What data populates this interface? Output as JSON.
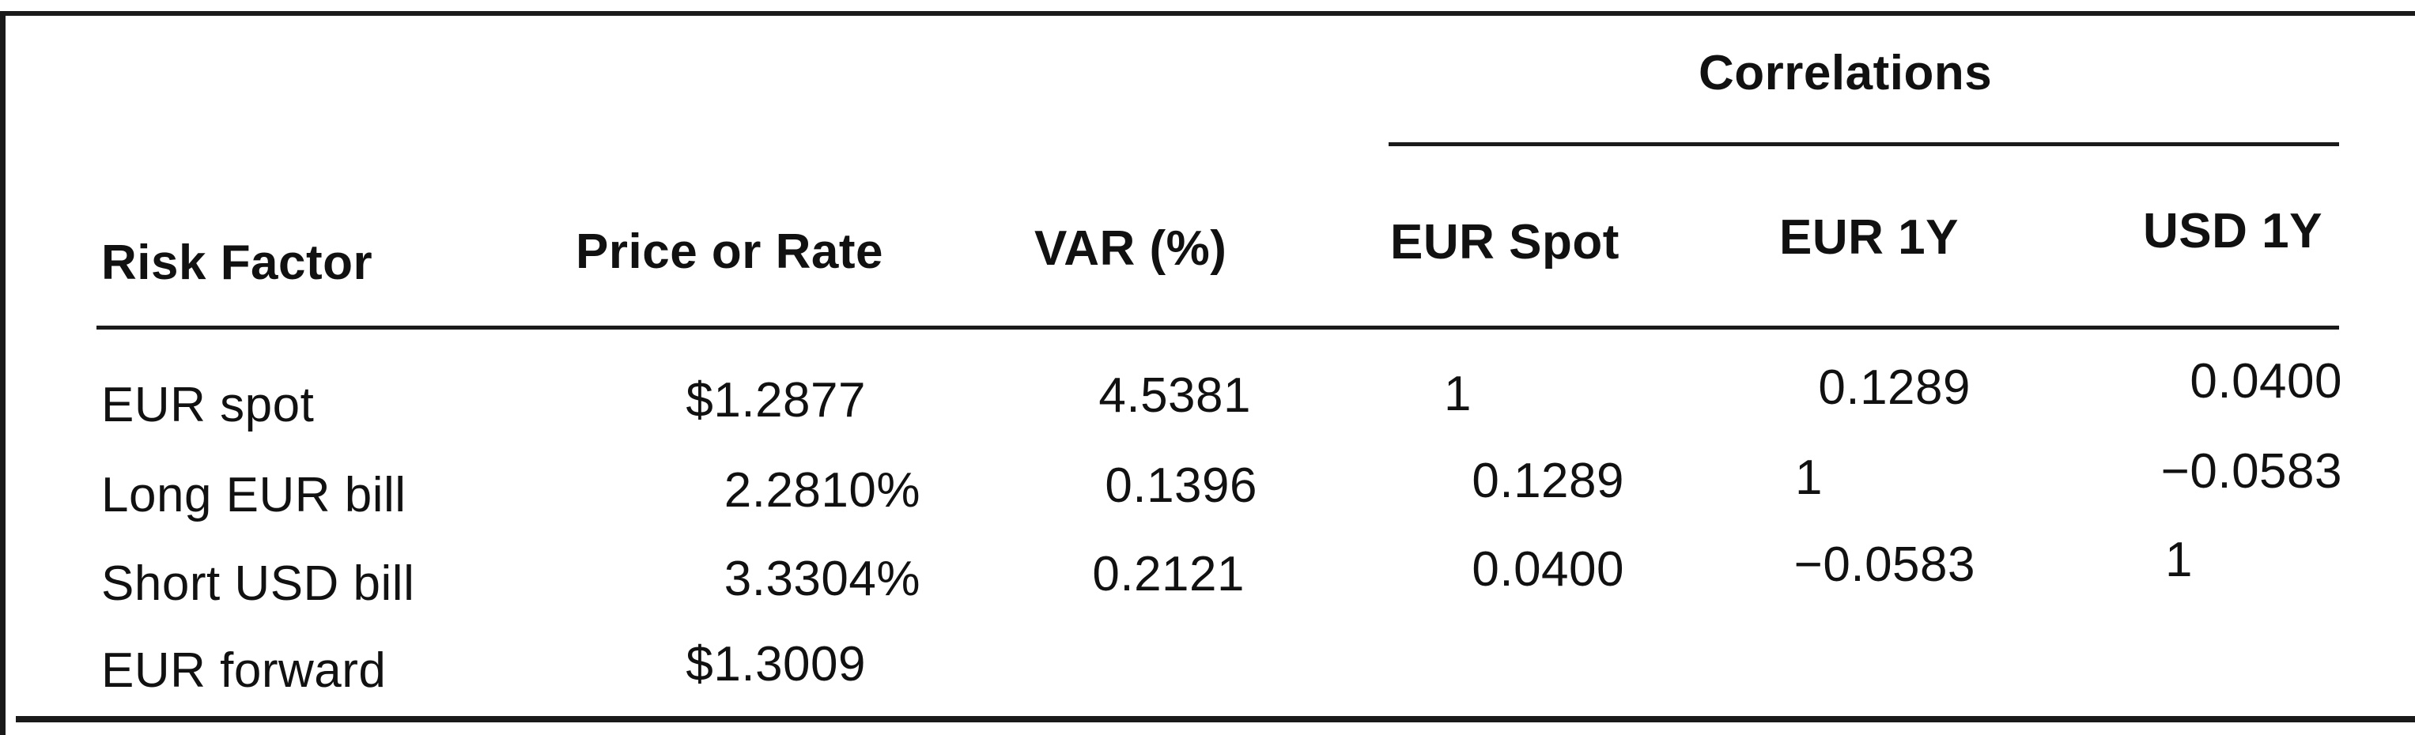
{
  "table": {
    "group_header": "Correlations",
    "headers": {
      "risk_factor": "Risk Factor",
      "price_or_rate": "Price or Rate",
      "var": "VAR (%)",
      "eur_spot": "EUR Spot",
      "eur_1y": "EUR 1Y",
      "usd_1y": "USD 1Y"
    },
    "rows": [
      {
        "risk_factor": "EUR spot",
        "price_or_rate": "$1.2877",
        "var": "4.5381",
        "eur_spot": "1",
        "eur_1y": "0.1289",
        "usd_1y": "0.0400"
      },
      {
        "risk_factor": "Long EUR bill",
        "price_or_rate": "2.2810%",
        "var": "0.1396",
        "eur_spot": "0.1289",
        "eur_1y": "1",
        "usd_1y": "−0.0583"
      },
      {
        "risk_factor": "Short USD bill",
        "price_or_rate": "3.3304%",
        "var": "0.2121",
        "eur_spot": "0.0400",
        "eur_1y": "−0.0583",
        "usd_1y": "1"
      },
      {
        "risk_factor": "EUR forward",
        "price_or_rate": "$1.3009",
        "var": "",
        "eur_spot": "",
        "eur_1y": "",
        "usd_1y": ""
      }
    ]
  }
}
